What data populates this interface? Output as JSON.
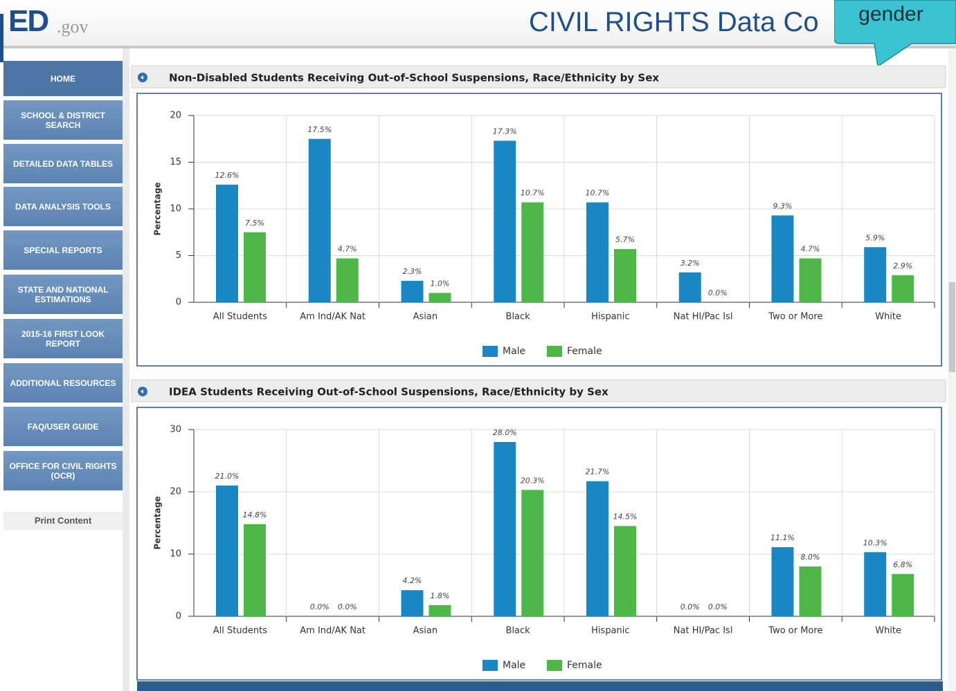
{
  "header": {
    "logo": "ED",
    "logo_suffix": ".gov",
    "site_title": "CIVIL RIGHTS Data Co",
    "callout": "gender"
  },
  "nav": [
    "HOME",
    "SCHOOL & DISTRICT SEARCH",
    "DETAILED DATA TABLES",
    "DATA ANALYSIS TOOLS",
    "SPECIAL REPORTS",
    "STATE AND NATIONAL ESTIMATIONS",
    "2015-16 FIRST LOOK REPORT",
    "ADDITIONAL RESOURCES",
    "FAQ/USER GUIDE",
    "OFFICE FOR CIVIL RIGHTS (OCR)"
  ],
  "print_content": "Print Content",
  "chart_data": [
    {
      "type": "bar",
      "title": "Non-Disabled Students Receiving Out-of-School Suspensions, Race/Ethnicity by Sex",
      "y_label": "Percentage",
      "categories": [
        "All Students",
        "Am Ind/AK Nat",
        "Asian",
        "Black",
        "Hispanic",
        "Nat HI/Pac Isl",
        "Two or More",
        "White"
      ],
      "series": [
        {
          "name": "Male",
          "color": "#1a87c5",
          "values": [
            12.6,
            17.5,
            2.3,
            17.3,
            10.7,
            3.2,
            9.3,
            5.9
          ],
          "value_labels": [
            "12.6%",
            "17.5%",
            "2.3%",
            "17.3%",
            "10.7%",
            "3.2%",
            "9.3%",
            "5.9%"
          ]
        },
        {
          "name": "Female",
          "color": "#4db848",
          "values": [
            7.5,
            4.7,
            1.0,
            10.7,
            5.7,
            0.0,
            4.7,
            2.9
          ],
          "value_labels": [
            "7.5%",
            "4.7%",
            "1.0%",
            "10.7%",
            "5.7%",
            "0.0%",
            "4.7%",
            "2.9%"
          ]
        }
      ],
      "ylim": [
        0,
        20
      ],
      "yticks": [
        0,
        5,
        10,
        15,
        20
      ],
      "grid": true,
      "legend": "bottom"
    },
    {
      "type": "bar",
      "title": "IDEA Students Receiving Out-of-School Suspensions, Race/Ethnicity by Sex",
      "y_label": "Percentage",
      "categories": [
        "All Students",
        "Am Ind/AK Nat",
        "Asian",
        "Black",
        "Hispanic",
        "Nat HI/Pac Isl",
        "Two or More",
        "White"
      ],
      "series": [
        {
          "name": "Male",
          "color": "#1a87c5",
          "values": [
            21.0,
            0.0,
            4.2,
            28.0,
            21.7,
            0.0,
            11.1,
            10.3
          ],
          "value_labels": [
            "21.0%",
            "0.0%",
            "4.2%",
            "28.0%",
            "21.7%",
            "0.0%",
            "11.1%",
            "10.3%"
          ]
        },
        {
          "name": "Female",
          "color": "#4db848",
          "values": [
            14.8,
            0.0,
            1.8,
            20.3,
            14.5,
            0.0,
            8.0,
            6.8
          ],
          "value_labels": [
            "14.8%",
            "0.0%",
            "1.8%",
            "20.3%",
            "14.5%",
            "0.0%",
            "8.0%",
            "6.8%"
          ]
        }
      ],
      "ylim": [
        0,
        30
      ],
      "yticks": [
        0,
        10,
        20,
        30
      ],
      "grid": true,
      "legend": "bottom"
    }
  ]
}
